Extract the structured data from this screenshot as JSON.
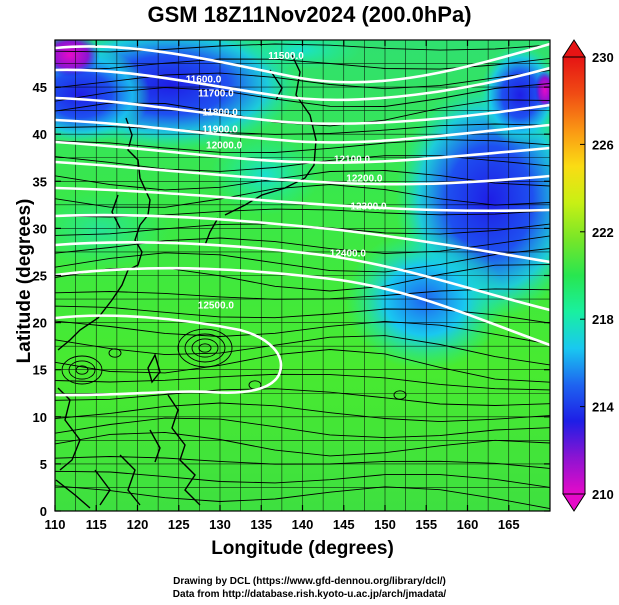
{
  "title": "GSM 18Z11Nov2024 (200.0hPa)",
  "x_axis": {
    "label": "Longitude (degrees)",
    "range": [
      110,
      170
    ],
    "ticks": [
      "110",
      "115",
      "120",
      "125",
      "130",
      "135",
      "140",
      "145",
      "150",
      "155",
      "160",
      "165"
    ]
  },
  "y_axis": {
    "label": "Latitude  (degrees)",
    "range": [
      0,
      50
    ],
    "ticks": [
      "0",
      "5",
      "10",
      "15",
      "20",
      "25",
      "30",
      "35",
      "40",
      "45"
    ]
  },
  "colorbar": {
    "range": [
      210,
      230
    ],
    "ticks": [
      "210",
      "214",
      "218",
      "222",
      "226",
      "230"
    ],
    "colors": [
      "#e60ac8",
      "#8c14d2",
      "#1e1ee6",
      "#1e64f0",
      "#19c8f0",
      "#19f0a0",
      "#28e650",
      "#78e628",
      "#c8f014",
      "#fadc14",
      "#fa9614",
      "#f04b14",
      "#e61414"
    ]
  },
  "contours": {
    "color": "#ffffff",
    "levels": [
      {
        "label": "11500.0",
        "value": 11500,
        "lon": 138,
        "lat": 48
      },
      {
        "label": "11600.0",
        "value": 11600,
        "lon": 128,
        "lat": 45.5
      },
      {
        "label": "11700.0",
        "value": 11700,
        "lon": 129.5,
        "lat": 44
      },
      {
        "label": "11800.0",
        "value": 11800,
        "lon": 130,
        "lat": 42
      },
      {
        "label": "11900.0",
        "value": 11900,
        "lon": 130,
        "lat": 40.2
      },
      {
        "label": "12000.0",
        "value": 12000,
        "lon": 130.5,
        "lat": 38.5
      },
      {
        "label": "12100.0",
        "value": 12100,
        "lon": 146,
        "lat": 37
      },
      {
        "label": "12200.0",
        "value": 12200,
        "lon": 147.5,
        "lat": 35
      },
      {
        "label": "12300.0",
        "value": 12300,
        "lon": 148,
        "lat": 32
      },
      {
        "label": "12400.0",
        "value": 12400,
        "lon": 145.5,
        "lat": 27
      },
      {
        "label": "12500.0",
        "value": 12500,
        "lon": 129.5,
        "lat": 21.5
      }
    ]
  },
  "credits": [
    "Drawing by DCL (https://www.gfd-dennou.org/library/dcl/)",
    "Data from http://database.rish.kyoto-u.ac.jp/arch/jmadata/"
  ]
}
